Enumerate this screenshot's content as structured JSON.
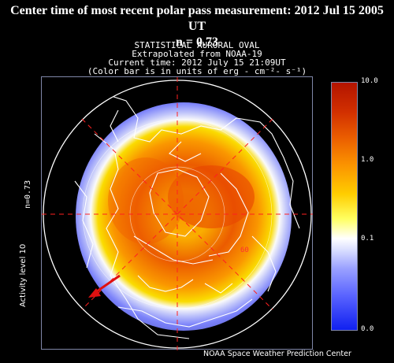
{
  "header": {
    "line1": "Center time of most recent polar pass measurement: 2012 Jul 15 2005 UT",
    "line2": "n = 0.73"
  },
  "plot": {
    "title": "STATISTICAL AURORAL OVAL",
    "line2": "Extrapolated from NOAA-19",
    "line3": "Current time: 2012 July 15 21:09UT",
    "line4": "(Color bar is in units of erg - cm⁻²- s⁻¹)",
    "left_label_n": "n=0.73",
    "left_label_activity": "Activity level 10",
    "credit": "NOAA Space Weather Prediction Center",
    "latitude_label": "60"
  },
  "colorbar": {
    "ticks": [
      "10.0",
      "1.0",
      "0.1",
      "0.0"
    ],
    "colors": [
      "#b31400",
      "#ea5c00",
      "#ffcd00",
      "#ffffff",
      "#9ba2ff",
      "#1020f0"
    ]
  },
  "colors": {
    "background": "#000000",
    "frame": "#7f86a8",
    "grid_dash": "#ff2020",
    "arrow": "#e01010",
    "coast": "#ffffff"
  }
}
